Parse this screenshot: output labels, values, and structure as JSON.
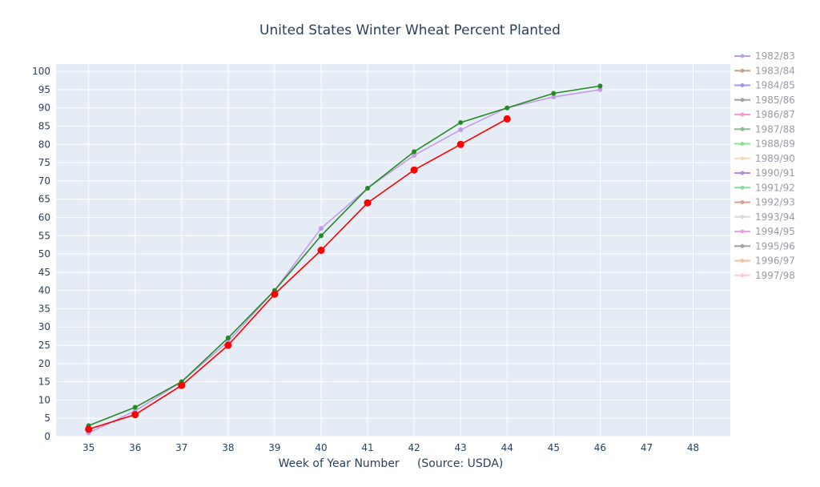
{
  "chart_data": {
    "type": "line",
    "title": "United States Winter Wheat Percent Planted",
    "xlabel": "Week of Year Number     (Source: USDA)",
    "ylabel": "",
    "xlim": [
      34.3,
      48.8
    ],
    "ylim": [
      0,
      102
    ],
    "x_ticks": [
      35,
      36,
      37,
      38,
      39,
      40,
      41,
      42,
      43,
      44,
      45,
      46,
      47,
      48
    ],
    "y_ticks": [
      0,
      5,
      10,
      15,
      20,
      25,
      30,
      35,
      40,
      45,
      50,
      55,
      60,
      65,
      70,
      75,
      80,
      85,
      90,
      95,
      100
    ],
    "grid": true,
    "legend_position": "right",
    "plot_background": "#e5ecf6",
    "series": [
      {
        "name": "1982/83",
        "color": "#b9a0e8",
        "legend_only": true,
        "x": [],
        "y": []
      },
      {
        "name": "1983/84",
        "color": "#c4a38f",
        "legend_only": true,
        "x": [],
        "y": []
      },
      {
        "name": "1984/85",
        "color": "#a09be0",
        "legend_only": true,
        "x": [],
        "y": []
      },
      {
        "name": "1985/86",
        "color": "#a0a0a8",
        "legend_only": true,
        "x": [],
        "y": []
      },
      {
        "name": "1986/87",
        "color": "#f29ac8",
        "legend_only": true,
        "x": [],
        "y": []
      },
      {
        "name": "1987/88",
        "color": "#8fb89e",
        "legend_only": true,
        "x": [],
        "y": []
      },
      {
        "name": "1988/89",
        "color": "#8ee08e",
        "legend_only": true,
        "x": [],
        "y": []
      },
      {
        "name": "1989/90",
        "color": "#f7d9b8",
        "legend_only": true,
        "x": [],
        "y": []
      },
      {
        "name": "1990/91",
        "color": "#b48ad8",
        "legend_only": true,
        "x": [],
        "y": []
      },
      {
        "name": "1991/92",
        "color": "#90d8a0",
        "legend_only": true,
        "x": [],
        "y": []
      },
      {
        "name": "1992/93",
        "color": "#d8a090",
        "legend_only": true,
        "x": [],
        "y": []
      },
      {
        "name": "1993/94",
        "color": "#d8d8e0",
        "legend_only": true,
        "x": [],
        "y": []
      },
      {
        "name": "1994/95",
        "color": "#f0a0e0",
        "legend_only": true,
        "x": [],
        "y": []
      },
      {
        "name": "1995/96",
        "color": "#a0a0a0",
        "legend_only": true,
        "x": [],
        "y": []
      },
      {
        "name": "1996/97",
        "color": "#f5c29a",
        "legend_only": true,
        "x": [],
        "y": []
      },
      {
        "name": "1997/98",
        "color": "#f8cfc8",
        "legend_only": true,
        "x": [],
        "y": []
      },
      {
        "name": "",
        "color": "#c39be8",
        "marker_size": 3,
        "x": [
          35,
          36,
          37,
          38,
          39,
          40,
          41,
          42,
          43,
          44,
          45,
          46
        ],
        "y": [
          1,
          7,
          15,
          26,
          40,
          57,
          68,
          77,
          84,
          90,
          93,
          95
        ]
      },
      {
        "name": "",
        "color": "#228b22",
        "marker_size": 3,
        "x": [
          35,
          36,
          37,
          38,
          39,
          40,
          41,
          42,
          43,
          44,
          45,
          46
        ],
        "y": [
          3,
          8,
          15,
          27,
          40,
          55,
          68,
          78,
          86,
          90,
          94,
          96
        ]
      },
      {
        "name": "",
        "color": "#ff0000",
        "marker_size": 4.5,
        "x": [
          35,
          36,
          37,
          38,
          39,
          40,
          41,
          42,
          43,
          44
        ],
        "y": [
          2,
          6,
          14,
          25,
          39,
          51,
          64,
          73,
          80,
          87
        ]
      }
    ]
  }
}
